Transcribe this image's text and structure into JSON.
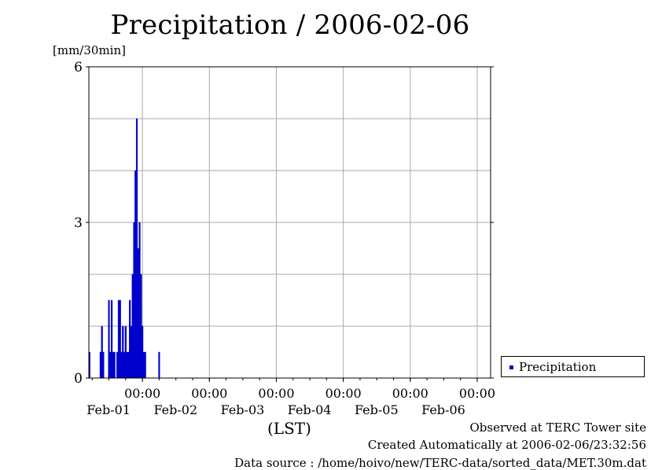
{
  "chart_data": {
    "type": "bar",
    "title": "Precipitation / 2006-02-06",
    "ylabel": "[mm/30min]",
    "xlabel": "(LST)",
    "ylim": [
      0,
      6
    ],
    "yticks": [
      "0",
      "3",
      "6"
    ],
    "xlim_days": [
      -0.8,
      5.2
    ],
    "xticks": [
      {
        "day": 0,
        "time": "00:00",
        "date": "Feb-01"
      },
      {
        "day": 1,
        "time": "00:00",
        "date": "Feb-02"
      },
      {
        "day": 2,
        "time": "00:00",
        "date": "Feb-03"
      },
      {
        "day": 3,
        "time": "00:00",
        "date": "Feb-04"
      },
      {
        "day": 4,
        "time": "00:00",
        "date": "Feb-05"
      },
      {
        "day": 5,
        "time": "00:00",
        "date": "Feb-06"
      }
    ],
    "grid": true,
    "legend_position": "right",
    "series": [
      {
        "name": "Precipitation",
        "color": "#0000cc",
        "points": [
          {
            "t": "01-31 05:00",
            "v": 0.5
          },
          {
            "t": "01-31 09:00",
            "v": 0.5
          },
          {
            "t": "01-31 09:30",
            "v": 1.0
          },
          {
            "t": "01-31 10:00",
            "v": 0.5
          },
          {
            "t": "01-31 12:00",
            "v": 1.5
          },
          {
            "t": "01-31 12:30",
            "v": 0.5
          },
          {
            "t": "01-31 13:00",
            "v": 1.5
          },
          {
            "t": "01-31 13:30",
            "v": 0.5
          },
          {
            "t": "01-31 14:00",
            "v": 0.5
          },
          {
            "t": "01-31 15:00",
            "v": 0.5
          },
          {
            "t": "01-31 15:30",
            "v": 1.5
          },
          {
            "t": "01-31 16:00",
            "v": 1.5
          },
          {
            "t": "01-31 16:30",
            "v": 0.5
          },
          {
            "t": "01-31 17:00",
            "v": 1.0
          },
          {
            "t": "01-31 17:30",
            "v": 0.5
          },
          {
            "t": "01-31 18:00",
            "v": 1.0
          },
          {
            "t": "01-31 18:30",
            "v": 0.5
          },
          {
            "t": "01-31 19:00",
            "v": 0.5
          },
          {
            "t": "01-31 19:30",
            "v": 1.5
          },
          {
            "t": "01-31 20:00",
            "v": 1.0
          },
          {
            "t": "01-31 20:30",
            "v": 2.0
          },
          {
            "t": "01-31 21:00",
            "v": 3.0
          },
          {
            "t": "01-31 21:30",
            "v": 4.0
          },
          {
            "t": "01-31 22:00",
            "v": 5.0
          },
          {
            "t": "01-31 22:30",
            "v": 2.5
          },
          {
            "t": "01-31 23:00",
            "v": 3.0
          },
          {
            "t": "01-31 23:30",
            "v": 2.0
          },
          {
            "t": "02-01 00:00",
            "v": 1.0
          },
          {
            "t": "02-01 00:30",
            "v": 0.5
          },
          {
            "t": "02-01 01:00",
            "v": 0.5
          },
          {
            "t": "02-01 06:00",
            "v": 0.5
          }
        ]
      }
    ]
  },
  "legend": {
    "label": "Precipitation",
    "color": "#0000cc"
  },
  "footer": {
    "line1": "Observed at TERC Tower site",
    "line2": "Created Automatically at 2006-02-06/23:32:56",
    "line3": "Data source : /home/hoivo/new/TERC-data/sorted_data/MET.30m.dat"
  }
}
